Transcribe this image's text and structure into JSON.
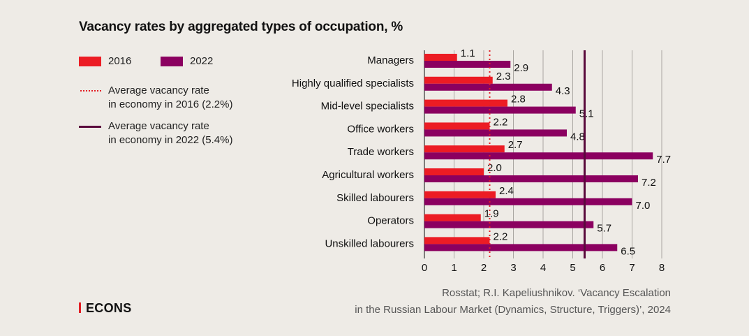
{
  "chart_data": {
    "type": "bar",
    "orientation": "horizontal",
    "title": "Vacancy rates by aggregated types of occupation, %",
    "categories": [
      "Managers",
      "Highly qualified specialists",
      "Mid-level specialists",
      "Office workers",
      "Trade workers",
      "Agricultural workers",
      "Skilled labourers",
      "Operators",
      "Unskilled labourers"
    ],
    "series": [
      {
        "name": "2016",
        "color": "#ec1c24",
        "values": [
          1.1,
          2.3,
          2.8,
          2.2,
          2.7,
          2.0,
          2.4,
          1.9,
          2.2
        ]
      },
      {
        "name": "2022",
        "color": "#8b0060",
        "values": [
          2.9,
          4.3,
          5.1,
          4.8,
          7.7,
          7.2,
          7.0,
          5.7,
          6.5
        ]
      }
    ],
    "value_labels": {
      "2016": [
        "1.1",
        "2.3",
        "2.8",
        "2.2",
        "2.7",
        "2.0",
        "2.4",
        "1.9",
        "2.2"
      ],
      "2022": [
        "2.9",
        "4.3",
        "5.1",
        "4.8",
        "7.7",
        "7.2",
        "7.0",
        "5.7",
        "6.5"
      ]
    },
    "reference_lines": [
      {
        "label_line1": "Average vacancy rate",
        "label_line2": "in economy in 2016 (2.2%)",
        "value": 2.2,
        "style": "dotted",
        "color": "#e31e24"
      },
      {
        "label_line1": "Average vacancy rate",
        "label_line2": "in economy in 2022 (5.4%)",
        "value": 5.4,
        "style": "solid",
        "color": "#5a0a3c"
      }
    ],
    "xlim": [
      0,
      8
    ],
    "xticks": [
      "0",
      "1",
      "2",
      "3",
      "4",
      "5",
      "6",
      "7",
      "8"
    ],
    "grid": true,
    "legend": "top-left",
    "xlabel": "",
    "ylabel": ""
  },
  "source": {
    "line1": "Rosstat; R.I. Kapeliushnikov. ‘Vacancy Escalation",
    "line2": "in the Russian Labour Market (Dynamics, Structure, Triggers)’, 2024"
  },
  "logo": "ECONS"
}
